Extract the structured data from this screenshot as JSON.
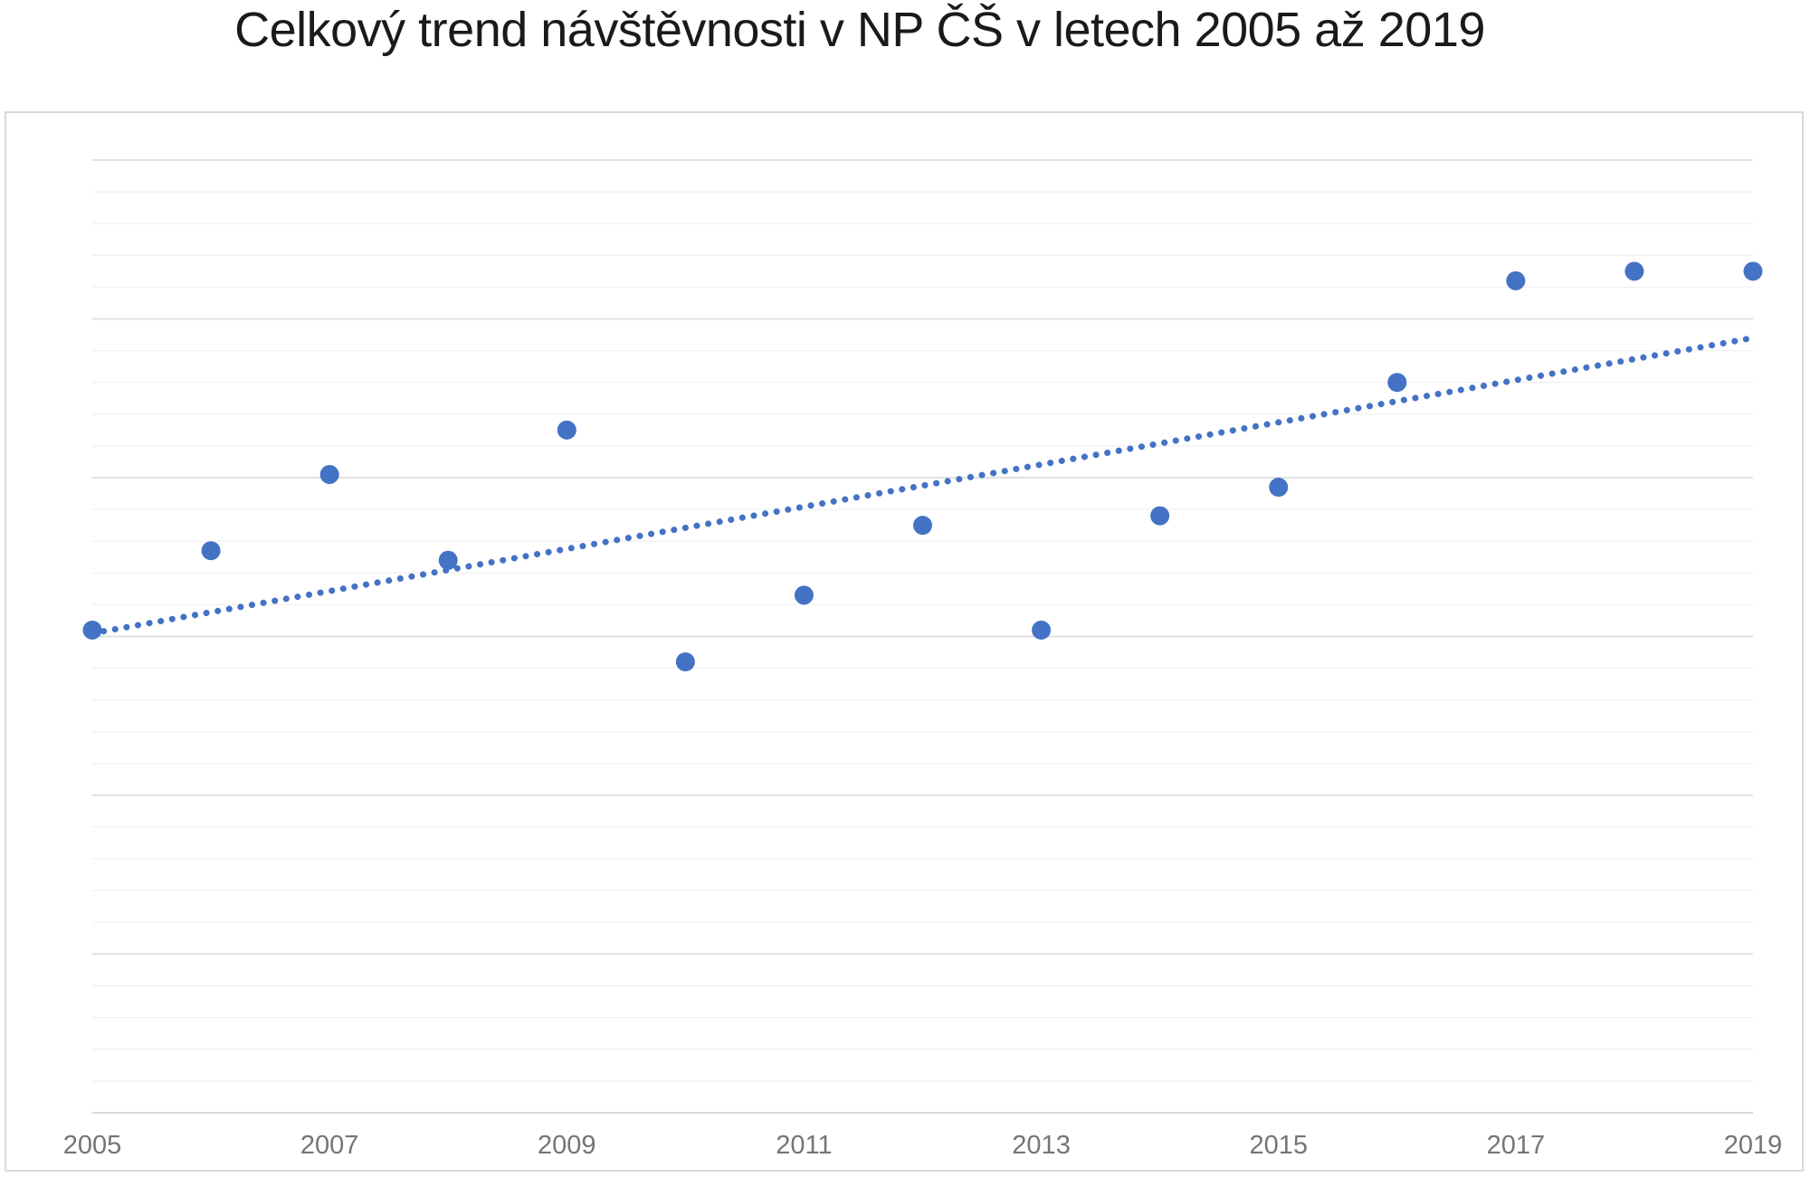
{
  "chart_data": {
    "type": "scatter",
    "title": "Celkový trend návštěvnosti v NP ČŠ v letech 2005 až 2019",
    "x": [
      2005,
      2006,
      2007,
      2008,
      2009,
      2010,
      2011,
      2012,
      2013,
      2014,
      2015,
      2016,
      2017,
      2018,
      2019
    ],
    "series": [
      {
        "values": [
          15.2,
          17.7,
          20.1,
          17.4,
          21.5,
          14.2,
          16.3,
          18.5,
          15.2,
          18.8,
          19.7,
          23.0,
          26.2,
          26.5,
          26.5
        ]
      }
    ],
    "trendline": {
      "type": "linear",
      "style": "dotted",
      "x_start": 2005,
      "x_end": 2019,
      "start_value": 15.1,
      "end_value": 24.4
    },
    "x_ticks": [
      "2005",
      "2007",
      "2009",
      "2011",
      "2013",
      "2015",
      "2017",
      "2019"
    ],
    "xlabel": "",
    "ylabel": "",
    "y_axis": {
      "visible": false,
      "implied_units_range": [
        0,
        30
      ],
      "minor_unit": 1,
      "major_unit": 5,
      "note": "No Y-axis labels shown in chart; values estimated in gridline units (1 unit = one minor gridline)."
    },
    "grid": {
      "horizontal_minor": true,
      "horizontal_major_every": 5,
      "vertical": false
    },
    "legend": "none"
  },
  "colors": {
    "point": "#4472C4",
    "trendline": "#4472C4",
    "grid_minor": "#f1f1f1",
    "grid_major": "#dddddd",
    "axis_line": "#d6d6d6",
    "frame_border": "#d9d9d9",
    "axis_label_text": "#757575",
    "title_text": "#1a1a1a",
    "background": "#ffffff"
  }
}
